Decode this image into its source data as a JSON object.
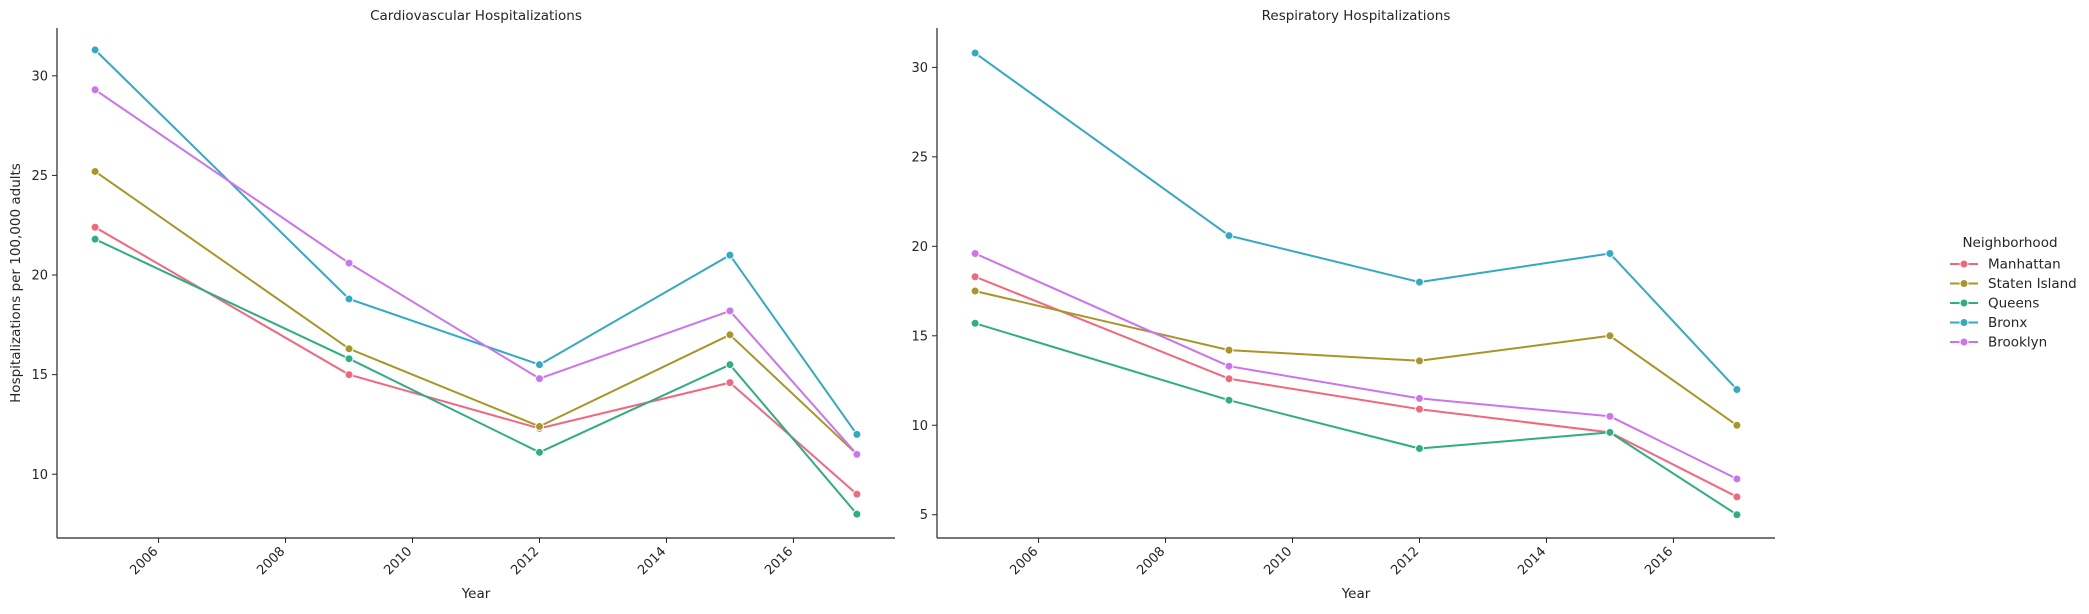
{
  "chart_data": [
    {
      "type": "line",
      "title": "Cardiovascular Hospitalizations",
      "xlabel": "Year",
      "ylabel": "Hospitalizations per 100,000 adults",
      "x": [
        2005,
        2009,
        2012,
        2015,
        2017
      ],
      "xlim": [
        2004.4,
        2017.6
      ],
      "ylim": [
        6.8,
        32.4
      ],
      "xticks": [
        "2006",
        "2008",
        "2010",
        "2012",
        "2014",
        "2016"
      ],
      "yticks": [
        "10",
        "15",
        "20",
        "25",
        "30"
      ],
      "series": [
        {
          "name": "Manhattan",
          "values": [
            22.4,
            15.0,
            12.3,
            14.6,
            9.0
          ]
        },
        {
          "name": "Staten Island",
          "values": [
            25.2,
            16.3,
            12.4,
            17.0,
            11.0
          ]
        },
        {
          "name": "Queens",
          "values": [
            21.8,
            15.8,
            11.1,
            15.5,
            8.0
          ]
        },
        {
          "name": "Bronx",
          "values": [
            31.3,
            18.8,
            15.5,
            21.0,
            12.0
          ]
        },
        {
          "name": "Brooklyn",
          "values": [
            29.3,
            20.6,
            14.8,
            18.2,
            11.0
          ]
        }
      ]
    },
    {
      "type": "line",
      "title": "Respiratory Hospitalizations",
      "xlabel": "Year",
      "ylabel": "",
      "x": [
        2005,
        2009,
        2012,
        2015,
        2017
      ],
      "xlim": [
        2004.4,
        2017.6
      ],
      "ylim": [
        3.7,
        32.2
      ],
      "xticks": [
        "2006",
        "2008",
        "2010",
        "2012",
        "2014",
        "2016"
      ],
      "yticks": [
        "5",
        "10",
        "15",
        "20",
        "25",
        "30"
      ],
      "series": [
        {
          "name": "Manhattan",
          "values": [
            18.3,
            12.6,
            10.9,
            9.6,
            6.0
          ]
        },
        {
          "name": "Staten Island",
          "values": [
            17.5,
            14.2,
            13.6,
            15.0,
            10.0
          ]
        },
        {
          "name": "Queens",
          "values": [
            15.7,
            11.4,
            8.7,
            9.6,
            5.0
          ]
        },
        {
          "name": "Bronx",
          "values": [
            30.8,
            20.6,
            18.0,
            19.6,
            12.0
          ]
        },
        {
          "name": "Brooklyn",
          "values": [
            19.6,
            13.3,
            11.5,
            10.5,
            7.0
          ]
        }
      ]
    }
  ],
  "legend": {
    "title": "Neighborhood",
    "placement": "right",
    "entries": [
      "Manhattan",
      "Staten Island",
      "Queens",
      "Bronx",
      "Brooklyn"
    ]
  },
  "colors": {
    "Manhattan": "#f2677e",
    "Staten Island": "#a89629",
    "Queens": "#30ad82",
    "Bronx": "#33a9c4",
    "Brooklyn": "#cc73f2",
    "axis": "#262626"
  }
}
